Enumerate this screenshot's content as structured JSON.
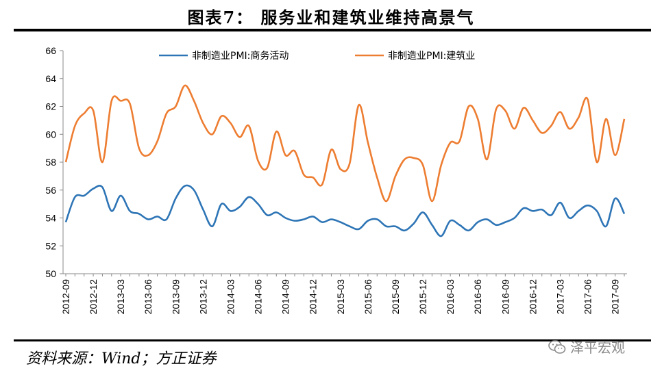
{
  "figure": {
    "title": "图表7： 服务业和建筑业维持高景气",
    "source": "资料来源：Wind；方正证券",
    "watermark": "泽平宏观"
  },
  "chart_data": {
    "type": "line",
    "title": "图表7： 服务业和建筑业维持高景气",
    "ylim": [
      50,
      66
    ],
    "y_ticks": [
      50,
      52,
      54,
      56,
      58,
      60,
      62,
      64,
      66
    ],
    "x_tick_labels": [
      "2012-09",
      "2012-12",
      "2013-03",
      "2013-06",
      "2013-09",
      "2013-12",
      "2014-03",
      "2014-06",
      "2014-09",
      "2014-12",
      "2015-03",
      "2015-06",
      "2015-09",
      "2015-12",
      "2016-03",
      "2016-06",
      "2016-09",
      "2016-12",
      "2017-03",
      "2017-06",
      "2017-09"
    ],
    "x": [
      "2012-09",
      "2012-10",
      "2012-11",
      "2012-12",
      "2013-01",
      "2013-02",
      "2013-03",
      "2013-04",
      "2013-05",
      "2013-06",
      "2013-07",
      "2013-08",
      "2013-09",
      "2013-10",
      "2013-11",
      "2013-12",
      "2014-01",
      "2014-02",
      "2014-03",
      "2014-04",
      "2014-05",
      "2014-06",
      "2014-07",
      "2014-08",
      "2014-09",
      "2014-10",
      "2014-11",
      "2014-12",
      "2015-01",
      "2015-02",
      "2015-03",
      "2015-04",
      "2015-05",
      "2015-06",
      "2015-07",
      "2015-08",
      "2015-09",
      "2015-10",
      "2015-11",
      "2015-12",
      "2016-01",
      "2016-02",
      "2016-03",
      "2016-04",
      "2016-05",
      "2016-06",
      "2016-07",
      "2016-08",
      "2016-09",
      "2016-10",
      "2016-11",
      "2016-12",
      "2017-01",
      "2017-02",
      "2017-03",
      "2017-04",
      "2017-05",
      "2017-06",
      "2017-07",
      "2017-08",
      "2017-09",
      "2017-10"
    ],
    "grid": false,
    "legend_position": "top",
    "series": [
      {
        "name": "非制造业PMI:商务活动",
        "color": "#2e75b6",
        "values": [
          53.7,
          55.5,
          55.6,
          56.1,
          56.2,
          54.5,
          55.6,
          54.5,
          54.3,
          53.9,
          54.1,
          53.9,
          55.4,
          56.3,
          56.0,
          54.6,
          53.4,
          55.0,
          54.5,
          54.8,
          55.5,
          55.0,
          54.2,
          54.4,
          54.0,
          53.8,
          53.9,
          54.1,
          53.7,
          53.9,
          53.7,
          53.4,
          53.2,
          53.8,
          53.9,
          53.4,
          53.4,
          53.1,
          53.6,
          54.4,
          53.5,
          52.7,
          53.8,
          53.5,
          53.1,
          53.7,
          53.9,
          53.5,
          53.7,
          54.0,
          54.7,
          54.5,
          54.6,
          54.2,
          55.1,
          54.0,
          54.5,
          54.9,
          54.5,
          53.4,
          55.4,
          54.3
        ]
      },
      {
        "name": "非制造业PMI:建筑业",
        "color": "#ed7d31",
        "values": [
          58.0,
          60.6,
          61.5,
          61.7,
          58.0,
          62.4,
          62.4,
          62.2,
          59.0,
          58.5,
          59.5,
          61.5,
          62.0,
          63.5,
          62.4,
          60.8,
          60.0,
          61.3,
          60.8,
          59.8,
          60.6,
          58.1,
          57.6,
          60.2,
          58.5,
          58.8,
          57.1,
          56.9,
          56.4,
          58.9,
          57.5,
          57.9,
          62.1,
          59.4,
          56.9,
          55.2,
          57.0,
          58.2,
          58.3,
          57.8,
          55.2,
          57.8,
          59.4,
          59.5,
          62.0,
          61.1,
          58.2,
          61.8,
          61.7,
          60.4,
          61.9,
          61.0,
          60.1,
          60.6,
          61.6,
          60.4,
          61.2,
          62.5,
          58.0,
          61.1,
          58.5,
          61.1
        ]
      }
    ]
  }
}
